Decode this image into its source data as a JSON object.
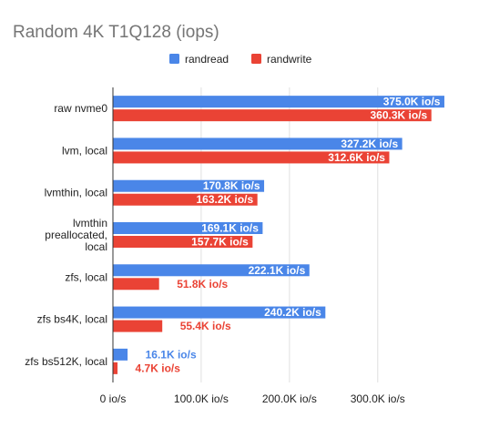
{
  "chart_data": {
    "type": "bar",
    "orientation": "horizontal",
    "title": "Random 4K T1Q128 (iops)",
    "xlabel": "",
    "ylabel": "",
    "xlim": [
      0,
      390000
    ],
    "ticks": [
      0,
      100000,
      200000,
      300000
    ],
    "tick_labels": [
      "0 io/s",
      "100.0K io/s",
      "200.0K io/s",
      "300.0K io/s"
    ],
    "grid": true,
    "legend_position": "top",
    "categories": [
      [
        "raw nvme0"
      ],
      [
        "lvm, local"
      ],
      [
        "lvmthin, local"
      ],
      [
        "lvmthin",
        "preallocated,",
        "local"
      ],
      [
        "zfs, local"
      ],
      [
        "zfs bs4K, local"
      ],
      [
        "zfs bs512K, local"
      ]
    ],
    "series": [
      {
        "name": "randread",
        "color": "#4a86e8",
        "values": [
          375000,
          327200,
          170800,
          169100,
          222100,
          240200,
          16100
        ],
        "labels": [
          "375.0K io/s",
          "327.2K io/s",
          "170.8K io/s",
          "169.1K io/s",
          "222.1K io/s",
          "240.2K io/s",
          "16.1K io/s"
        ]
      },
      {
        "name": "randwrite",
        "color": "#ea4335",
        "values": [
          360300,
          312600,
          163200,
          157700,
          51800,
          55400,
          4700
        ],
        "labels": [
          "360.3K io/s",
          "312.6K io/s",
          "163.2K io/s",
          "157.7K io/s",
          "51.8K io/s",
          "55.4K io/s",
          "4.7K io/s"
        ]
      }
    ]
  }
}
